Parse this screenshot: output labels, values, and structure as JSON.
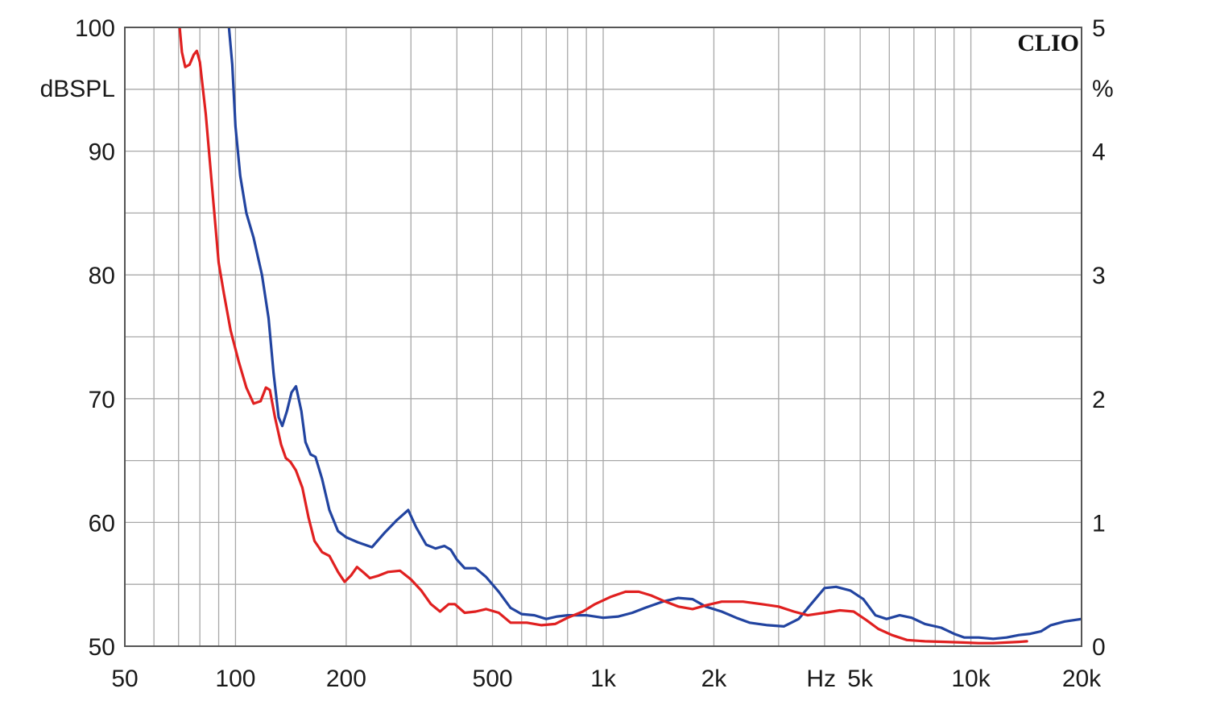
{
  "chart_data": {
    "type": "line",
    "brand": "CLIO",
    "x_scale": "log",
    "xlim": [
      50,
      20000
    ],
    "ylim": [
      50,
      100
    ],
    "y2lim": [
      0,
      5
    ],
    "grid": true,
    "ylabel": "dBSPL",
    "y2label": "%",
    "xlabel": "Hz",
    "x_tick_labels": [
      {
        "value": 50,
        "label": "50"
      },
      {
        "value": 100,
        "label": "100"
      },
      {
        "value": 200,
        "label": "200"
      },
      {
        "value": 500,
        "label": "500"
      },
      {
        "value": 1000,
        "label": "1k"
      },
      {
        "value": 2000,
        "label": "2k"
      },
      {
        "value": 5000,
        "label": "5k"
      },
      {
        "value": 10000,
        "label": "10k"
      },
      {
        "value": 20000,
        "label": "20k"
      }
    ],
    "y_tick_labels": [
      {
        "value": 100,
        "label": "100"
      },
      {
        "value": 90,
        "label": "90"
      },
      {
        "value": 80,
        "label": "80"
      },
      {
        "value": 70,
        "label": "70"
      },
      {
        "value": 60,
        "label": "60"
      },
      {
        "value": 50,
        "label": "50"
      }
    ],
    "y2_tick_labels": [
      {
        "value": 5,
        "label": "5"
      },
      {
        "value": 4,
        "label": "4"
      },
      {
        "value": 3,
        "label": "3"
      },
      {
        "value": 2,
        "label": "2"
      },
      {
        "value": 1,
        "label": "1"
      },
      {
        "value": 0,
        "label": "0"
      }
    ],
    "series": [
      {
        "color": "#2244a0",
        "points": [
          [
            96,
            100
          ],
          [
            98,
            97
          ],
          [
            100,
            92
          ],
          [
            103,
            88
          ],
          [
            107,
            85
          ],
          [
            112,
            83
          ],
          [
            118,
            80
          ],
          [
            123,
            76.5
          ],
          [
            127,
            72
          ],
          [
            131,
            68.5
          ],
          [
            134,
            67.8
          ],
          [
            138,
            69
          ],
          [
            142,
            70.5
          ],
          [
            146,
            71
          ],
          [
            151,
            69
          ],
          [
            155,
            66.5
          ],
          [
            160,
            65.5
          ],
          [
            165,
            65.3
          ],
          [
            172,
            63.5
          ],
          [
            180,
            61
          ],
          [
            190,
            59.3
          ],
          [
            200,
            58.8
          ],
          [
            215,
            58.4
          ],
          [
            235,
            58
          ],
          [
            255,
            59.2
          ],
          [
            275,
            60.2
          ],
          [
            295,
            61
          ],
          [
            310,
            59.6
          ],
          [
            330,
            58.2
          ],
          [
            350,
            57.9
          ],
          [
            370,
            58.1
          ],
          [
            385,
            57.8
          ],
          [
            400,
            57
          ],
          [
            420,
            56.3
          ],
          [
            450,
            56.3
          ],
          [
            480,
            55.6
          ],
          [
            520,
            54.4
          ],
          [
            560,
            53.1
          ],
          [
            600,
            52.6
          ],
          [
            650,
            52.5
          ],
          [
            700,
            52.2
          ],
          [
            750,
            52.4
          ],
          [
            800,
            52.5
          ],
          [
            900,
            52.5
          ],
          [
            1000,
            52.3
          ],
          [
            1100,
            52.4
          ],
          [
            1200,
            52.7
          ],
          [
            1300,
            53.1
          ],
          [
            1450,
            53.6
          ],
          [
            1600,
            53.9
          ],
          [
            1750,
            53.8
          ],
          [
            1900,
            53.2
          ],
          [
            2100,
            52.8
          ],
          [
            2300,
            52.3
          ],
          [
            2500,
            51.9
          ],
          [
            2800,
            51.7
          ],
          [
            3100,
            51.6
          ],
          [
            3400,
            52.2
          ],
          [
            3700,
            53.5
          ],
          [
            4000,
            54.7
          ],
          [
            4300,
            54.8
          ],
          [
            4700,
            54.5
          ],
          [
            5100,
            53.8
          ],
          [
            5500,
            52.5
          ],
          [
            5900,
            52.2
          ],
          [
            6400,
            52.5
          ],
          [
            6900,
            52.3
          ],
          [
            7500,
            51.8
          ],
          [
            8300,
            51.5
          ],
          [
            9000,
            51.0
          ],
          [
            9600,
            50.7
          ],
          [
            10500,
            50.7
          ],
          [
            11500,
            50.6
          ],
          [
            12500,
            50.7
          ],
          [
            13500,
            50.9
          ],
          [
            14500,
            51.0
          ],
          [
            15500,
            51.2
          ],
          [
            16500,
            51.7
          ],
          [
            18000,
            52.0
          ],
          [
            20000,
            52.2
          ]
        ]
      },
      {
        "color": "#e02020",
        "points": [
          [
            70.5,
            100
          ],
          [
            71.5,
            98
          ],
          [
            73,
            96.8
          ],
          [
            75,
            97
          ],
          [
            77,
            97.8
          ],
          [
            78.5,
            98.1
          ],
          [
            80,
            97.2
          ],
          [
            83,
            93
          ],
          [
            87,
            86
          ],
          [
            90,
            81
          ],
          [
            93,
            78.5
          ],
          [
            97,
            75.5
          ],
          [
            102,
            73
          ],
          [
            107,
            70.9
          ],
          [
            112,
            69.6
          ],
          [
            117,
            69.8
          ],
          [
            121,
            70.9
          ],
          [
            124,
            70.7
          ],
          [
            128,
            68.5
          ],
          [
            133,
            66.3
          ],
          [
            137,
            65.2
          ],
          [
            141,
            64.9
          ],
          [
            146,
            64.2
          ],
          [
            152,
            62.8
          ],
          [
            158,
            60.4
          ],
          [
            164,
            58.5
          ],
          [
            172,
            57.6
          ],
          [
            180,
            57.3
          ],
          [
            190,
            56
          ],
          [
            198,
            55.2
          ],
          [
            206,
            55.7
          ],
          [
            214,
            56.4
          ],
          [
            222,
            56
          ],
          [
            232,
            55.5
          ],
          [
            245,
            55.7
          ],
          [
            260,
            56
          ],
          [
            280,
            56.1
          ],
          [
            300,
            55.4
          ],
          [
            320,
            54.5
          ],
          [
            340,
            53.4
          ],
          [
            360,
            52.8
          ],
          [
            380,
            53.4
          ],
          [
            395,
            53.4
          ],
          [
            420,
            52.7
          ],
          [
            450,
            52.8
          ],
          [
            480,
            53.0
          ],
          [
            520,
            52.7
          ],
          [
            560,
            51.9
          ],
          [
            620,
            51.9
          ],
          [
            680,
            51.7
          ],
          [
            740,
            51.8
          ],
          [
            800,
            52.3
          ],
          [
            880,
            52.8
          ],
          [
            950,
            53.4
          ],
          [
            1050,
            54.0
          ],
          [
            1150,
            54.4
          ],
          [
            1250,
            54.4
          ],
          [
            1350,
            54.1
          ],
          [
            1450,
            53.7
          ],
          [
            1600,
            53.2
          ],
          [
            1750,
            53.0
          ],
          [
            1900,
            53.3
          ],
          [
            2100,
            53.6
          ],
          [
            2400,
            53.6
          ],
          [
            2700,
            53.4
          ],
          [
            3000,
            53.2
          ],
          [
            3300,
            52.8
          ],
          [
            3600,
            52.5
          ],
          [
            4000,
            52.7
          ],
          [
            4400,
            52.9
          ],
          [
            4800,
            52.8
          ],
          [
            5200,
            52.1
          ],
          [
            5600,
            51.4
          ],
          [
            6100,
            50.9
          ],
          [
            6700,
            50.5
          ],
          [
            7500,
            50.4
          ],
          [
            8500,
            50.35
          ],
          [
            9500,
            50.3
          ],
          [
            10500,
            50.25
          ],
          [
            11500,
            50.25
          ],
          [
            12500,
            50.3
          ],
          [
            13500,
            50.35
          ],
          [
            14200,
            50.4
          ]
        ]
      }
    ]
  }
}
